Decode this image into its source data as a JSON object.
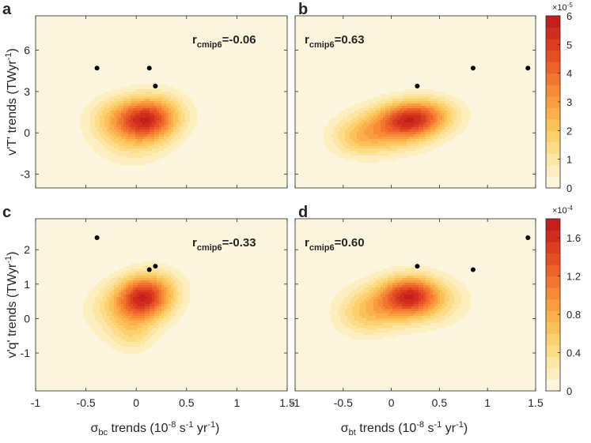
{
  "chart_data": [
    {
      "type": "scatter",
      "panel_label": "a",
      "annotation": {
        "r": "r",
        "sub": "cmip6",
        "value": "=-0.06"
      },
      "xlim": [
        -1,
        1.5
      ],
      "ylim": [
        -4,
        8.5
      ],
      "yticks": [
        "-3",
        "0",
        "3",
        "6"
      ],
      "ytick_values": [
        -3,
        0,
        3,
        6
      ],
      "ylabel": "v'T' trends (TWyr^-1)",
      "points": [
        {
          "x": -0.39,
          "y": 4.7
        },
        {
          "x": 0.13,
          "y": 4.7
        },
        {
          "x": 0.19,
          "y": 3.4
        }
      ],
      "density": [
        {
          "x": 0.1,
          "y": 0.9,
          "sx": 0.2,
          "sy": 1.0,
          "w": 1.0
        },
        {
          "x": -0.05,
          "y": 0.0,
          "sx": 0.25,
          "sy": 1.4,
          "w": 0.45
        },
        {
          "x": 0.2,
          "y": 1.6,
          "sx": 0.22,
          "sy": 1.1,
          "w": 0.35
        },
        {
          "x": -0.25,
          "y": 1.2,
          "sx": 0.18,
          "sy": 1.0,
          "w": 0.25
        }
      ]
    },
    {
      "type": "scatter",
      "panel_label": "b",
      "annotation": {
        "r": "r",
        "sub": "cmip6",
        "value": "=0.63"
      },
      "xlim": [
        -1,
        1.5
      ],
      "ylim": [
        -4,
        8.5
      ],
      "yticks": [
        "-3",
        "0",
        "3",
        "6"
      ],
      "ytick_values": [
        -3,
        0,
        3,
        6
      ],
      "points": [
        {
          "x": 0.27,
          "y": 3.4
        },
        {
          "x": 0.85,
          "y": 4.7
        },
        {
          "x": 1.42,
          "y": 4.7
        }
      ],
      "density": [
        {
          "x": 0.2,
          "y": 1.0,
          "sx": 0.22,
          "sy": 0.9,
          "w": 1.0
        },
        {
          "x": -0.05,
          "y": 0.2,
          "sx": 0.3,
          "sy": 1.1,
          "w": 0.6
        },
        {
          "x": -0.35,
          "y": -0.5,
          "sx": 0.2,
          "sy": 0.9,
          "w": 0.3
        },
        {
          "x": 0.45,
          "y": 1.4,
          "sx": 0.22,
          "sy": 0.9,
          "w": 0.35
        }
      ]
    },
    {
      "type": "scatter",
      "panel_label": "c",
      "annotation": {
        "r": "r",
        "sub": "cmip6",
        "value": "=-0.33"
      },
      "xlim": [
        -1,
        1.5
      ],
      "ylim": [
        -2.1,
        2.9
      ],
      "yticks": [
        "-1",
        "0",
        "1",
        "2"
      ],
      "ytick_values": [
        -1,
        0,
        1,
        2
      ],
      "ylabel": "v'q' trends (TWyr^-1)",
      "xticks": [
        "-1",
        "-0.5",
        "0",
        "0.5",
        "1",
        "1.5"
      ],
      "xtick_values": [
        -1,
        -0.5,
        0,
        0.5,
        1,
        1.5
      ],
      "xlabel": "σ_bc trends (10^-8 s^-1 yr^-1)",
      "points": [
        {
          "x": -0.39,
          "y": 2.35
        },
        {
          "x": 0.13,
          "y": 1.42
        },
        {
          "x": 0.19,
          "y": 1.52
        }
      ],
      "density": [
        {
          "x": 0.07,
          "y": 0.6,
          "sx": 0.18,
          "sy": 0.42,
          "w": 1.0
        },
        {
          "x": -0.1,
          "y": 0.25,
          "sx": 0.25,
          "sy": 0.5,
          "w": 0.45
        },
        {
          "x": -0.05,
          "y": -0.5,
          "sx": 0.15,
          "sy": 0.35,
          "w": 0.25
        },
        {
          "x": 0.2,
          "y": 0.9,
          "sx": 0.2,
          "sy": 0.4,
          "w": 0.3
        }
      ]
    },
    {
      "type": "scatter",
      "panel_label": "d",
      "annotation": {
        "r": "r",
        "sub": "cmip6",
        "value": "=0.60"
      },
      "xlim": [
        -1,
        1.5
      ],
      "ylim": [
        -2.1,
        2.9
      ],
      "yticks": [
        "-1",
        "0",
        "1",
        "2"
      ],
      "ytick_values": [
        -1,
        0,
        1,
        2
      ],
      "xticks": [
        "-1",
        "-0.5",
        "0",
        "0.5",
        "1",
        "1.5"
      ],
      "xtick_values": [
        -1,
        -0.5,
        0,
        0.5,
        1,
        1.5
      ],
      "xlabel": "σ_bt trends (10^-8 s^-1 yr^-1)",
      "points": [
        {
          "x": 0.27,
          "y": 1.52
        },
        {
          "x": 0.85,
          "y": 1.42
        },
        {
          "x": 1.42,
          "y": 2.35
        }
      ],
      "density": [
        {
          "x": 0.2,
          "y": 0.7,
          "sx": 0.2,
          "sy": 0.38,
          "w": 1.0
        },
        {
          "x": -0.05,
          "y": 0.4,
          "sx": 0.28,
          "sy": 0.45,
          "w": 0.55
        },
        {
          "x": -0.3,
          "y": 0.0,
          "sx": 0.2,
          "sy": 0.4,
          "w": 0.25
        },
        {
          "x": 0.45,
          "y": 0.5,
          "sx": 0.25,
          "sy": 0.45,
          "w": 0.3
        }
      ]
    }
  ],
  "colorbars": [
    {
      "exponent": "×10^-5",
      "ticks": [
        "0",
        "1",
        "2",
        "3",
        "4",
        "5",
        "6"
      ],
      "tick_values": [
        0,
        1,
        2,
        3,
        4,
        5,
        6
      ],
      "range": [
        0,
        6
      ]
    },
    {
      "exponent": "×10^-4",
      "ticks": [
        "0",
        "0.4",
        "0.8",
        "1.2",
        "1.6"
      ],
      "tick_values": [
        0,
        0.4,
        0.8,
        1.2,
        1.6
      ],
      "range": [
        0,
        1.8
      ]
    }
  ],
  "colormap": [
    "#fcf5de",
    "#fdeebf",
    "#fde6a3",
    "#fddc88",
    "#fdd06e",
    "#fcc25a",
    "#fbb04b",
    "#f99d40",
    "#f68a37",
    "#f2762f",
    "#ec6229",
    "#e44f24",
    "#da3d20",
    "#cf2d1e",
    "#c31f1d"
  ],
  "background_color": "#fcf5de",
  "point_color": "#000000"
}
